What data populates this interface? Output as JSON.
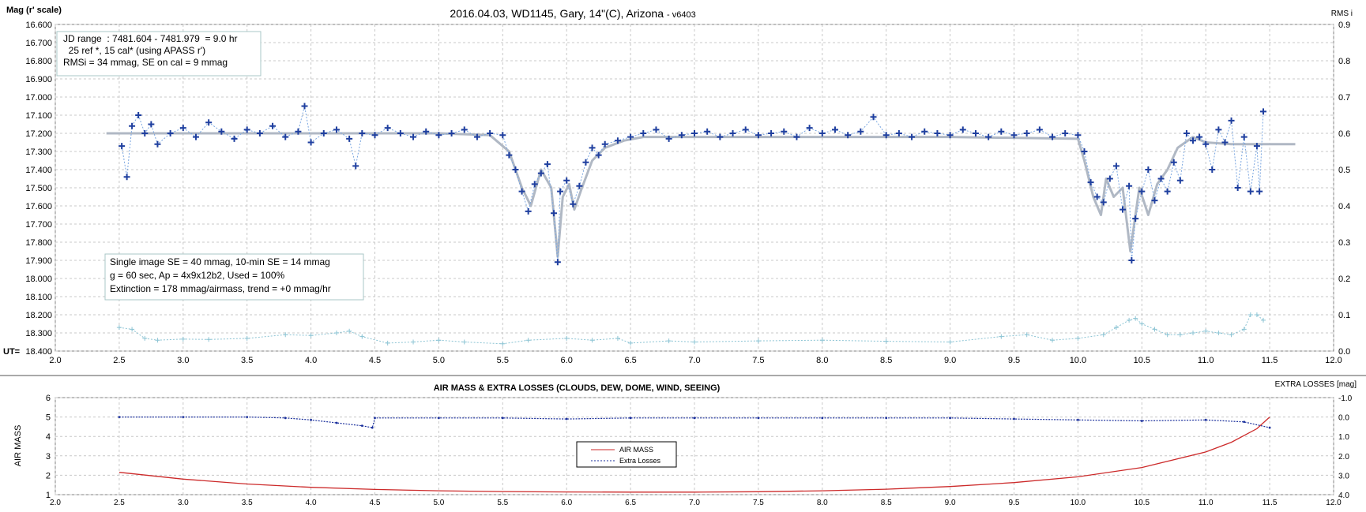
{
  "chart_data": [
    {
      "type": "scatter",
      "title": "2016.04.03,  WD1145, Gary, 14\"(C), Arizona",
      "version": "- v6403",
      "ylabel": "Mag (r' scale)",
      "y2label": "RMS i",
      "xlabel": "UT=",
      "xlim": [
        2.0,
        12.0
      ],
      "ylim": [
        16.6,
        18.4
      ],
      "y2lim": [
        0.0,
        0.9
      ],
      "y_inverted": true,
      "grid": true,
      "x_ticks": [
        "2.0",
        "2.5",
        "3.0",
        "3.5",
        "4.0",
        "4.5",
        "5.0",
        "5.5",
        "6.0",
        "6.5",
        "7.0",
        "7.5",
        "8.0",
        "8.5",
        "9.0",
        "9.5",
        "10.0",
        "10.5",
        "11.0",
        "11.5",
        "12.0"
      ],
      "y_ticks": [
        "16.600",
        "16.700",
        "16.800",
        "16.900",
        "17.000",
        "17.100",
        "17.200",
        "17.300",
        "17.400",
        "17.500",
        "17.600",
        "17.700",
        "17.800",
        "17.900",
        "18.000",
        "18.100",
        "18.200",
        "18.300",
        "18.400"
      ],
      "y2_ticks": [
        "0.0",
        "0.1",
        "0.2",
        "0.3",
        "0.4",
        "0.5",
        "0.6",
        "0.7",
        "0.8",
        "0.9"
      ],
      "info_box_1": [
        "JD range  : 7481.604 - 7481.979  = 9.0 hr",
        "  25 ref *, 15 cal* (using APASS r')",
        "RMSi = 34 mmag, SE on cal = 9 mmag"
      ],
      "info_box_2": [
        "Single image SE = 40 mmag, 10-min SE = 14 mmag",
        "g = 60 sec, Ap = 4x9x12b2, Used = 100%",
        "Extinction = 178 mmag/airmass, trend = +0 mmag/hr"
      ],
      "series": [
        {
          "role": "measurements",
          "color": "#1f3f9f",
          "marker": "plus",
          "x": [
            2.52,
            2.56,
            2.6,
            2.65,
            2.7,
            2.75,
            2.8,
            2.9,
            3.0,
            3.1,
            3.2,
            3.3,
            3.4,
            3.5,
            3.6,
            3.7,
            3.8,
            3.9,
            3.95,
            4.0,
            4.1,
            4.2,
            4.3,
            4.35,
            4.4,
            4.5,
            4.6,
            4.7,
            4.8,
            4.9,
            5.0,
            5.1,
            5.2,
            5.3,
            5.4,
            5.5,
            5.55,
            5.6,
            5.65,
            5.7,
            5.75,
            5.8,
            5.85,
            5.9,
            5.93,
            5.95,
            6.0,
            6.05,
            6.1,
            6.15,
            6.2,
            6.25,
            6.3,
            6.4,
            6.5,
            6.6,
            6.7,
            6.8,
            6.9,
            7.0,
            7.1,
            7.2,
            7.3,
            7.4,
            7.5,
            7.6,
            7.7,
            7.8,
            7.9,
            8.0,
            8.1,
            8.2,
            8.3,
            8.4,
            8.5,
            8.6,
            8.7,
            8.8,
            8.9,
            9.0,
            9.1,
            9.2,
            9.3,
            9.4,
            9.5,
            9.6,
            9.7,
            9.8,
            9.9,
            10.0,
            10.05,
            10.1,
            10.15,
            10.2,
            10.25,
            10.3,
            10.35,
            10.4,
            10.42,
            10.45,
            10.5,
            10.55,
            10.6,
            10.65,
            10.7,
            10.75,
            10.8,
            10.85,
            10.9,
            10.95,
            11.0,
            11.05,
            11.1,
            11.15,
            11.2,
            11.25,
            11.3,
            11.35,
            11.4,
            11.42,
            11.45
          ],
          "y": [
            17.27,
            17.44,
            17.16,
            17.1,
            17.2,
            17.15,
            17.26,
            17.2,
            17.17,
            17.22,
            17.14,
            17.19,
            17.23,
            17.18,
            17.2,
            17.16,
            17.22,
            17.19,
            17.05,
            17.25,
            17.2,
            17.18,
            17.23,
            17.38,
            17.2,
            17.21,
            17.17,
            17.2,
            17.22,
            17.19,
            17.21,
            17.2,
            17.18,
            17.22,
            17.2,
            17.21,
            17.32,
            17.4,
            17.52,
            17.63,
            17.48,
            17.42,
            17.37,
            17.64,
            17.91,
            17.52,
            17.46,
            17.59,
            17.49,
            17.36,
            17.28,
            17.32,
            17.26,
            17.24,
            17.22,
            17.2,
            17.18,
            17.23,
            17.21,
            17.2,
            17.19,
            17.22,
            17.2,
            17.18,
            17.21,
            17.2,
            17.19,
            17.22,
            17.17,
            17.2,
            17.18,
            17.21,
            17.19,
            17.11,
            17.21,
            17.2,
            17.22,
            17.19,
            17.2,
            17.21,
            17.18,
            17.2,
            17.22,
            17.19,
            17.21,
            17.2,
            17.18,
            17.22,
            17.2,
            17.21,
            17.3,
            17.47,
            17.55,
            17.58,
            17.45,
            17.38,
            17.62,
            17.49,
            17.9,
            17.67,
            17.52,
            17.4,
            17.57,
            17.45,
            17.52,
            17.36,
            17.46,
            17.2,
            17.24,
            17.22,
            17.26,
            17.4,
            17.18,
            17.25,
            17.13,
            17.5,
            17.22,
            17.52,
            17.27,
            17.52,
            17.08
          ],
          "name": ""
        },
        {
          "role": "model fit",
          "color": "#b0b8c4",
          "line": true,
          "x": [
            2.4,
            3.0,
            4.0,
            5.0,
            5.4,
            5.55,
            5.65,
            5.72,
            5.8,
            5.88,
            5.93,
            5.97,
            6.02,
            6.06,
            6.12,
            6.2,
            6.3,
            6.45,
            6.6,
            7.0,
            8.0,
            9.0,
            10.0,
            10.05,
            10.12,
            10.18,
            10.22,
            10.28,
            10.35,
            10.41,
            10.44,
            10.48,
            10.55,
            10.62,
            10.7,
            10.78,
            10.9,
            11.0,
            11.2,
            11.4,
            11.7
          ],
          "y": [
            17.2,
            17.2,
            17.2,
            17.2,
            17.21,
            17.3,
            17.5,
            17.6,
            17.4,
            17.5,
            17.88,
            17.55,
            17.48,
            17.62,
            17.5,
            17.35,
            17.28,
            17.24,
            17.22,
            17.22,
            17.22,
            17.22,
            17.23,
            17.35,
            17.55,
            17.65,
            17.45,
            17.55,
            17.5,
            17.85,
            17.7,
            17.5,
            17.65,
            17.48,
            17.4,
            17.28,
            17.22,
            17.25,
            17.26,
            17.26,
            17.26
          ],
          "name": ""
        },
        {
          "role": "rms (right axis)",
          "color": "#8cc4d4",
          "marker": "plus",
          "axis": "right",
          "x": [
            2.5,
            2.6,
            2.7,
            2.8,
            3.0,
            3.2,
            3.5,
            3.8,
            4.0,
            4.2,
            4.3,
            4.4,
            4.6,
            4.8,
            5.0,
            5.2,
            5.5,
            5.7,
            6.0,
            6.2,
            6.4,
            6.5,
            6.8,
            7.0,
            7.5,
            8.0,
            8.5,
            9.0,
            9.4,
            9.6,
            9.8,
            10.0,
            10.2,
            10.3,
            10.4,
            10.45,
            10.5,
            10.6,
            10.7,
            10.8,
            10.9,
            11.0,
            11.1,
            11.2,
            11.3,
            11.35,
            11.4,
            11.45
          ],
          "y": [
            0.065,
            0.06,
            0.035,
            0.03,
            0.033,
            0.032,
            0.035,
            0.045,
            0.043,
            0.05,
            0.055,
            0.04,
            0.022,
            0.025,
            0.03,
            0.025,
            0.02,
            0.03,
            0.035,
            0.03,
            0.035,
            0.022,
            0.028,
            0.025,
            0.028,
            0.03,
            0.027,
            0.025,
            0.04,
            0.045,
            0.03,
            0.035,
            0.045,
            0.065,
            0.085,
            0.09,
            0.075,
            0.06,
            0.045,
            0.045,
            0.05,
            0.055,
            0.05,
            0.045,
            0.06,
            0.1,
            0.1,
            0.085
          ],
          "name": ""
        }
      ]
    },
    {
      "type": "line",
      "title": "AIR MASS & EXTRA LOSSES (CLOUDS, DEW, DOME, WIND, SEEING)",
      "ylabel": "AIR MASS",
      "y2label": "EXTRA LOSSES [mag]",
      "xlim": [
        2.0,
        12.0
      ],
      "ylim": [
        1,
        6
      ],
      "y2lim": [
        4.0,
        -1.0
      ],
      "grid": true,
      "x_ticks": [
        "2.0",
        "2.5",
        "3.0",
        "3.5",
        "4.0",
        "4.5",
        "5.0",
        "5.5",
        "6.0",
        "6.5",
        "7.0",
        "7.5",
        "8.0",
        "8.5",
        "9.0",
        "9.5",
        "10.0",
        "10.5",
        "11.0",
        "11.5",
        "12.0"
      ],
      "y_ticks": [
        "1",
        "2",
        "3",
        "4",
        "5",
        "6"
      ],
      "y2_ticks": [
        "4.0",
        "3.0",
        "2.0",
        "1.0",
        "0.0",
        "-1.0"
      ],
      "legend": {
        "position": "center",
        "items": [
          "AIR MASS",
          "Extra Losses"
        ]
      },
      "series": [
        {
          "name": "AIR MASS",
          "color": "#cc2a2a",
          "x": [
            2.5,
            3.0,
            3.5,
            4.0,
            4.5,
            5.0,
            5.5,
            6.0,
            6.5,
            7.0,
            7.5,
            8.0,
            8.5,
            9.0,
            9.5,
            10.0,
            10.5,
            11.0,
            11.2,
            11.4,
            11.5
          ],
          "y": [
            2.15,
            1.8,
            1.55,
            1.38,
            1.27,
            1.2,
            1.16,
            1.14,
            1.13,
            1.13,
            1.15,
            1.2,
            1.28,
            1.42,
            1.62,
            1.92,
            2.4,
            3.2,
            3.7,
            4.4,
            5.0
          ]
        },
        {
          "name": "Extra Losses",
          "color": "#1a2f9c",
          "axis": "right",
          "x": [
            2.5,
            3.0,
            3.5,
            3.8,
            4.0,
            4.2,
            4.4,
            4.48,
            4.5,
            5.0,
            5.5,
            6.0,
            6.5,
            7.0,
            7.5,
            8.0,
            8.5,
            9.0,
            9.5,
            10.0,
            10.5,
            11.0,
            11.3,
            11.5
          ],
          "y": [
            0.0,
            0.0,
            0.0,
            0.05,
            0.15,
            0.3,
            0.45,
            0.55,
            0.05,
            0.05,
            0.05,
            0.1,
            0.05,
            0.05,
            0.05,
            0.05,
            0.05,
            0.05,
            0.1,
            0.15,
            0.2,
            0.15,
            0.25,
            0.55
          ]
        }
      ]
    }
  ]
}
